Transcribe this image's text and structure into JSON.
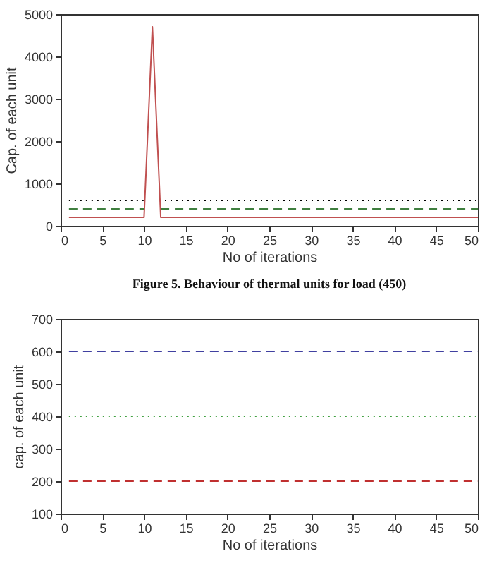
{
  "chart_data": [
    {
      "type": "line",
      "xlabel": "No of iterations",
      "ylabel": "Cap. of each unit",
      "annotations": [
        "Figure 5. Behaviour of thermal units  for load (450)"
      ],
      "xlim": [
        0,
        50
      ],
      "ylim": [
        0,
        5000
      ],
      "xticks": [
        0,
        5,
        10,
        15,
        20,
        25,
        30,
        35,
        40,
        45,
        50
      ],
      "yticks": [
        0,
        1000,
        2000,
        3000,
        4000,
        5000
      ],
      "grid": false,
      "series": [
        {
          "color": "#c05050",
          "line_style": "solid",
          "x": [
            1,
            10,
            11,
            12,
            50
          ],
          "values": [
            200,
            200,
            4700,
            200,
            200
          ]
        },
        {
          "color": "#408040",
          "line_style": "dashed",
          "x": [
            1,
            10,
            11,
            12,
            50
          ],
          "values": [
            400,
            400,
            null,
            400,
            400
          ]
        },
        {
          "color": "#000000",
          "line_style": "dotted",
          "x": [
            1,
            10,
            11,
            12.5,
            50
          ],
          "values": [
            600,
            600,
            null,
            600,
            600
          ]
        }
      ]
    },
    {
      "type": "line",
      "xlabel": "No of iterations",
      "ylabel": "cap. of each unit",
      "xlim": [
        0,
        50
      ],
      "ylim": [
        100,
        700
      ],
      "xticks": [
        0,
        5,
        10,
        15,
        20,
        25,
        30,
        35,
        40,
        45,
        50
      ],
      "yticks": [
        100,
        200,
        300,
        400,
        500,
        600,
        700
      ],
      "grid": false,
      "series": [
        {
          "color": "#4040a0",
          "line_style": "dashed",
          "x": [
            1,
            50
          ],
          "values": [
            600,
            600
          ]
        },
        {
          "color": "#40a040",
          "line_style": "dotted",
          "x": [
            1,
            50
          ],
          "values": [
            400,
            400
          ]
        },
        {
          "color": "#c03030",
          "line_style": "dashed",
          "x": [
            1,
            50
          ],
          "values": [
            200,
            200
          ]
        }
      ]
    }
  ]
}
